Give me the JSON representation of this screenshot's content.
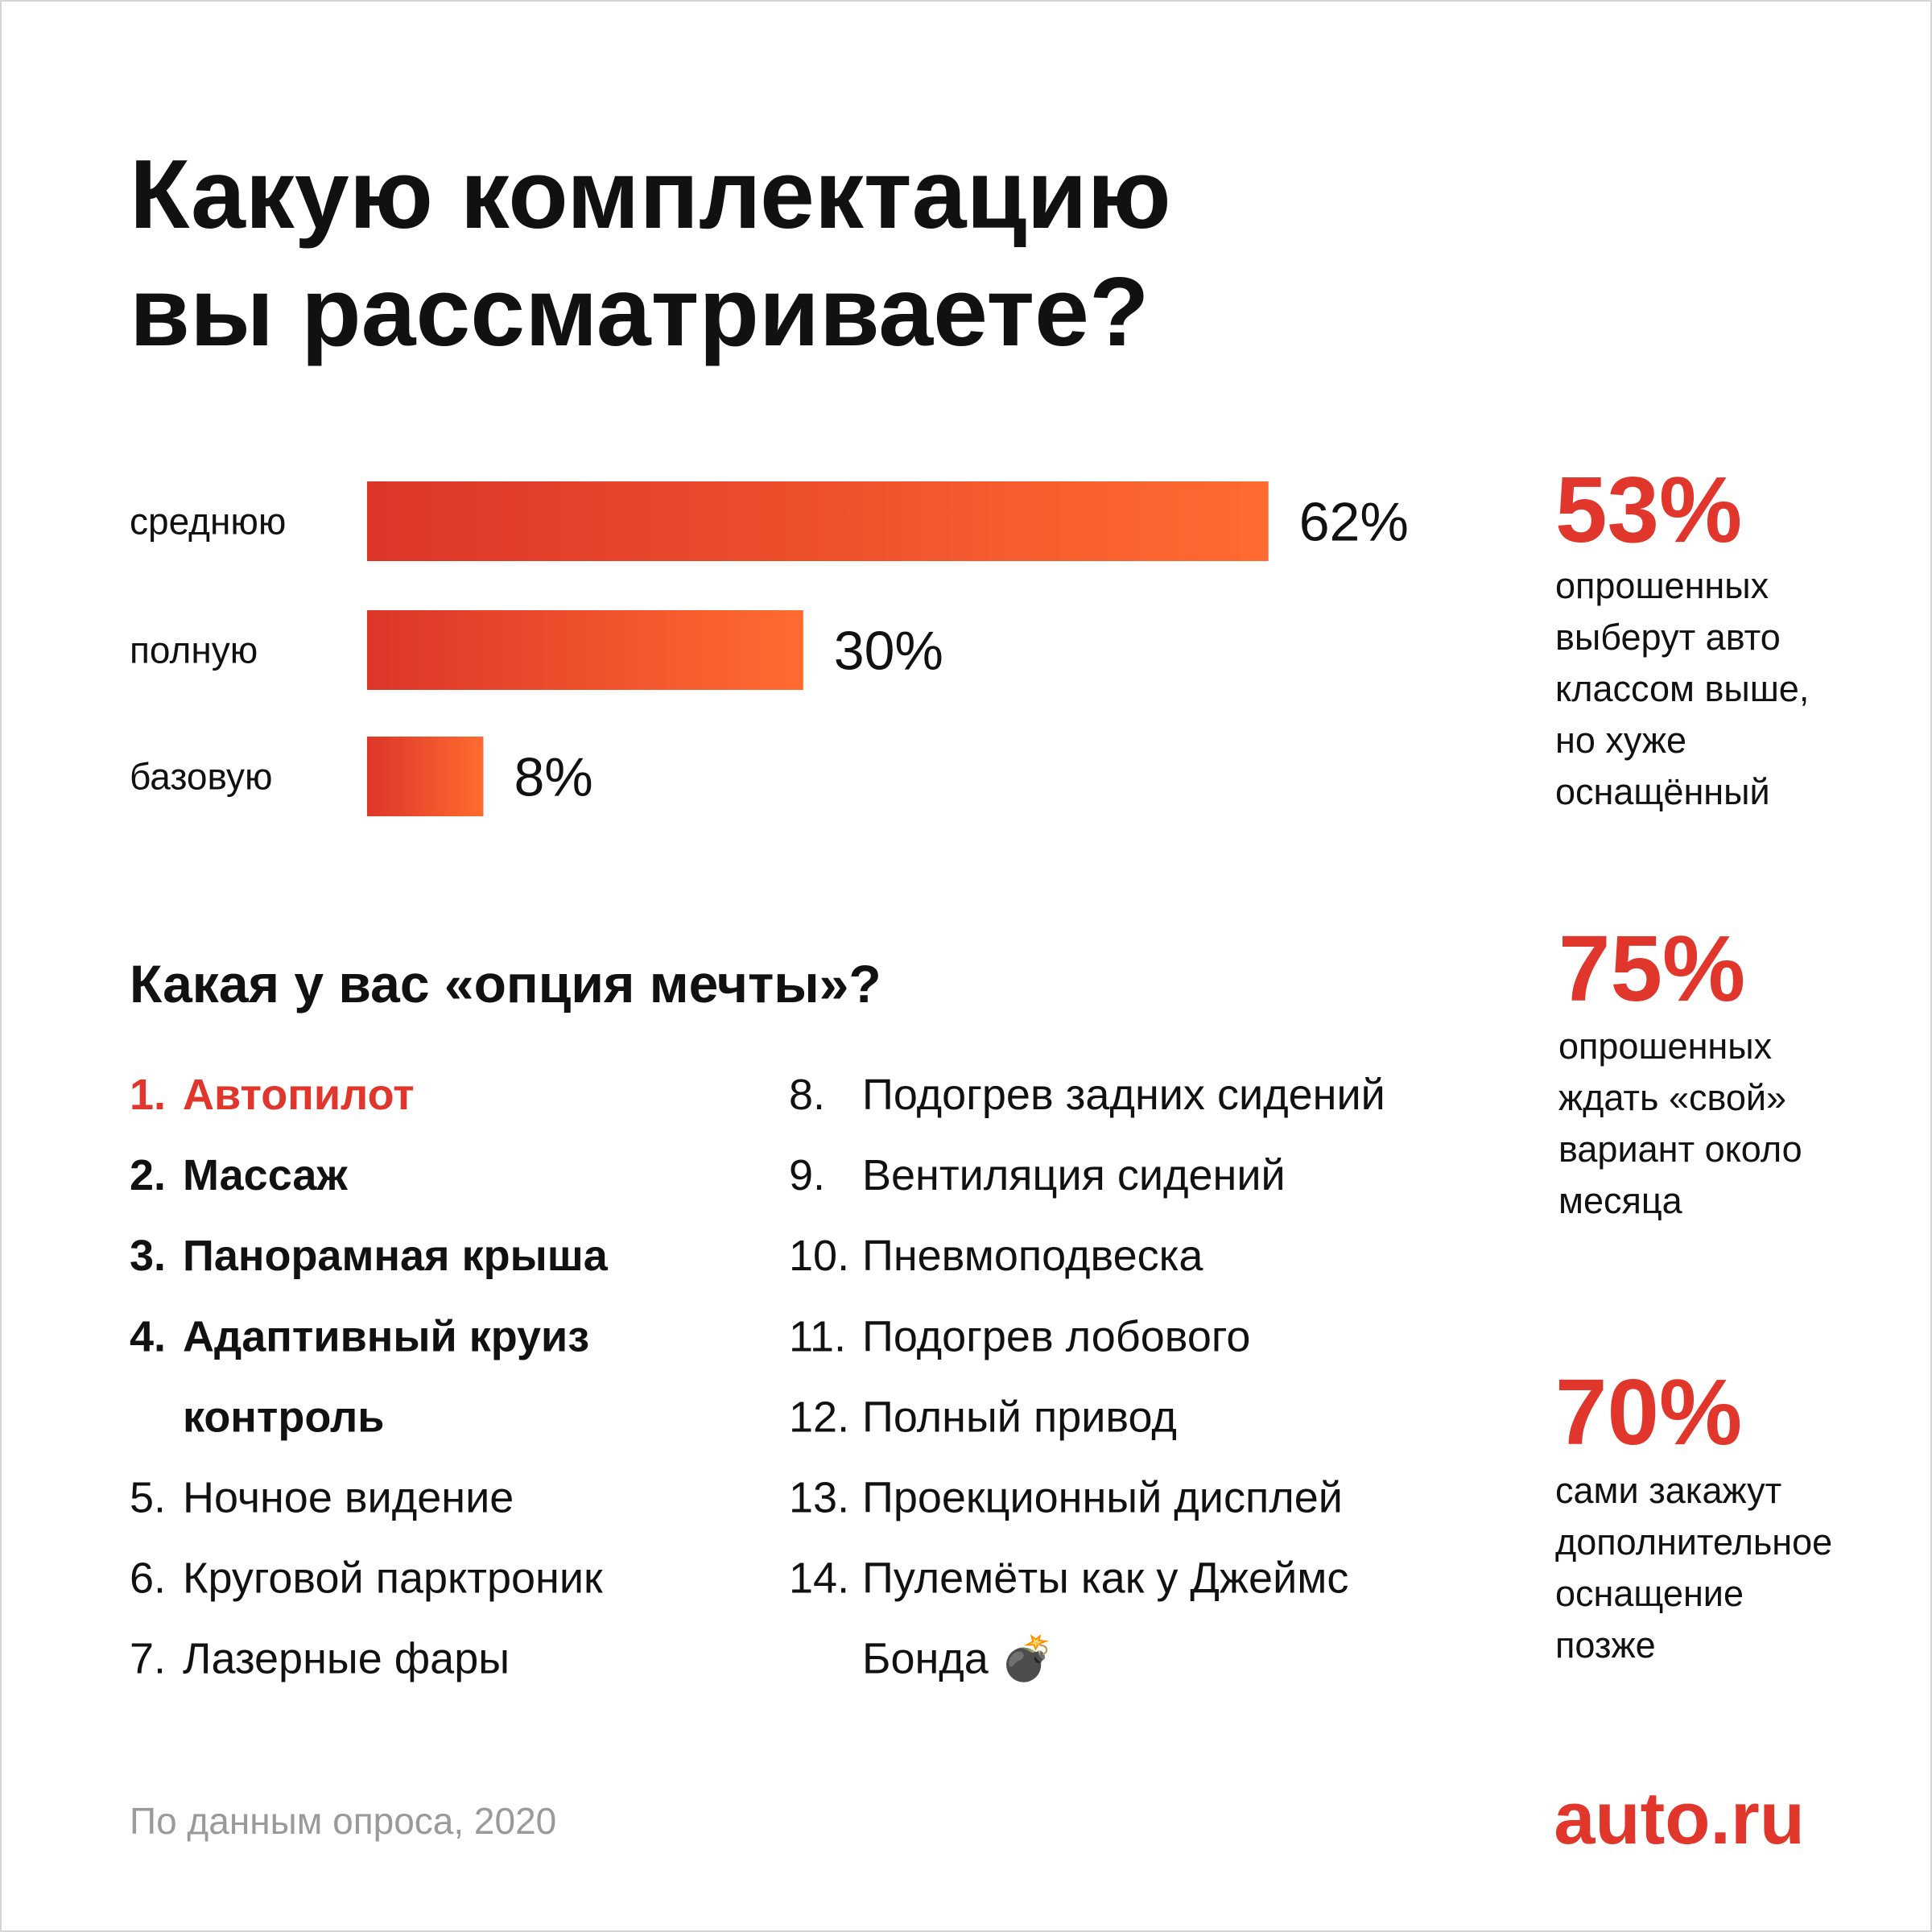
{
  "title": [
    "Какую комплектацию",
    "вы рассматриваете?"
  ],
  "chart_data": {
    "type": "bar",
    "orientation": "horizontal",
    "categories": [
      "среднюю",
      "полную",
      "базовую"
    ],
    "values": [
      62,
      30,
      8
    ],
    "value_labels": [
      "62%",
      "30%",
      "8%"
    ],
    "gradient": [
      "#dc3629",
      "#ff6b30"
    ]
  },
  "stats": [
    {
      "value": "53%",
      "lines": [
        "опрошенных",
        "выберут авто",
        "классом выше,",
        "но хуже",
        "оснащённый"
      ]
    },
    {
      "value": "75%",
      "lines": [
        "опрошенных",
        "ждать «свой»",
        "вариант около",
        "месяца"
      ]
    },
    {
      "value": "70%",
      "lines": [
        "сами закажут",
        "дополнительное",
        "оснащение",
        "позже"
      ]
    }
  ],
  "options": {
    "title": "Какая у вас «опция мечты»?",
    "items": [
      {
        "number": "1.",
        "lines": [
          "Автопилот"
        ]
      },
      {
        "number": "2.",
        "lines": [
          "Массаж"
        ]
      },
      {
        "number": "3.",
        "lines": [
          "Панорамная крыша"
        ]
      },
      {
        "number": "4.",
        "lines": [
          "Адаптивный круиз",
          "контроль"
        ]
      },
      {
        "number": "5.",
        "lines": [
          "Ночное видение"
        ]
      },
      {
        "number": "6.",
        "lines": [
          "Круговой парктроник"
        ]
      },
      {
        "number": "7.",
        "lines": [
          "Лазерные фары"
        ]
      },
      {
        "number": "8.",
        "lines": [
          "Подогрев задних сидений"
        ]
      },
      {
        "number": "9.",
        "lines": [
          "Вентиляция сидений"
        ]
      },
      {
        "number": "10.",
        "lines": [
          "Пневмоподвеска"
        ]
      },
      {
        "number": "11.",
        "lines": [
          "Подогрев лобового"
        ]
      },
      {
        "number": "12.",
        "lines": [
          "Полный привод"
        ]
      },
      {
        "number": "13.",
        "lines": [
          "Проекционный дисплей"
        ]
      },
      {
        "number": "14.",
        "lines": [
          "Пулемёты как у Джеймс",
          "Бонда 💣"
        ]
      }
    ]
  },
  "footer": {
    "source": "По данным опроса, 2020",
    "logo": "auto.ru"
  }
}
